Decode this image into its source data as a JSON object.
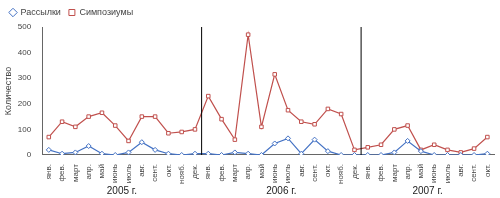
{
  "chart_data": {
    "type": "line",
    "categories": [
      "янв.",
      "фев.",
      "март",
      "апр.",
      "май",
      "июнь",
      "июль",
      "авг.",
      "сент.",
      "окт.",
      "нояб.",
      "дек.",
      "янв.",
      "фев.",
      "март",
      "апр.",
      "май",
      "июнь",
      "июль",
      "авг.",
      "сент.",
      "окт.",
      "нояб.",
      "дек.",
      "янв.",
      "фев.",
      "март",
      "апр.",
      "май",
      "июнь",
      "июль",
      "авг.",
      "сент.",
      "окт."
    ],
    "series": [
      {
        "name": "Рассылки",
        "color": "#4472C4",
        "marker": "diamond",
        "values": [
          20,
          5,
          10,
          35,
          5,
          0,
          10,
          50,
          20,
          5,
          0,
          5,
          5,
          0,
          10,
          5,
          0,
          45,
          65,
          5,
          60,
          15,
          0,
          0,
          0,
          0,
          10,
          55,
          15,
          0,
          0,
          0,
          0,
          5
        ]
      },
      {
        "name": "Симпозиумы",
        "color": "#C0504D",
        "marker": "square",
        "values": [
          70,
          130,
          110,
          150,
          165,
          115,
          55,
          150,
          150,
          85,
          90,
          100,
          230,
          140,
          60,
          470,
          110,
          315,
          175,
          130,
          120,
          180,
          160,
          20,
          30,
          40,
          100,
          115,
          20,
          40,
          20,
          10,
          25,
          70
        ]
      }
    ],
    "y_label": "Количество",
    "ylim": [
      0,
      500
    ],
    "yticks": [
      0,
      100,
      200,
      300,
      400,
      500
    ],
    "annotations": [
      {
        "text": "2005 г.",
        "x": 5.5
      },
      {
        "text": "2006 г.",
        "x": 17.5
      },
      {
        "text": "2007 г.",
        "x": 28.5
      }
    ],
    "vlines": [
      11.5,
      23.5
    ],
    "grid": false,
    "legend": "upper left"
  }
}
